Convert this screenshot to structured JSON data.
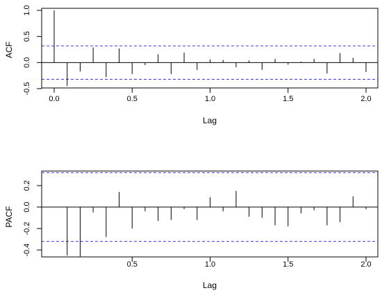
{
  "chart_data": [
    {
      "type": "bar",
      "subtype": "acf-correlogram",
      "title": "",
      "xlabel": "Lag",
      "ylabel": "ACF",
      "xlim": [
        0.0,
        2.0
      ],
      "ylim": [
        -0.5,
        1.0
      ],
      "xticks": [
        "0.0",
        "0.5",
        "1.0",
        "1.5",
        "2.0"
      ],
      "yticks": [
        "-0.5",
        "0.0",
        "0.5",
        "1.0"
      ],
      "conf_band": 0.32,
      "band_color": "#3b3be0",
      "line_color": "#000000",
      "x": [
        0.0,
        0.0833,
        0.1667,
        0.25,
        0.3333,
        0.4167,
        0.5,
        0.5833,
        0.6667,
        0.75,
        0.8333,
        0.9167,
        1.0,
        1.0833,
        1.1667,
        1.25,
        1.3333,
        1.4167,
        1.5,
        1.5833,
        1.6667,
        1.75,
        1.8333,
        1.9167,
        2.0
      ],
      "values": [
        1.0,
        -0.45,
        -0.17,
        0.29,
        -0.28,
        0.27,
        -0.22,
        -0.05,
        0.16,
        -0.22,
        0.19,
        -0.14,
        0.06,
        0.05,
        -0.09,
        0.04,
        -0.14,
        0.07,
        -0.04,
        0.02,
        0.07,
        -0.21,
        0.18,
        0.09,
        -0.18
      ]
    },
    {
      "type": "bar",
      "subtype": "pacf-correlogram",
      "title": "",
      "xlabel": "Lag",
      "ylabel": "PACF",
      "xlim": [
        0.0833,
        2.0
      ],
      "ylim": [
        -0.47,
        0.34
      ],
      "xticks": [
        "0.5",
        "1.0",
        "1.5",
        "2.0"
      ],
      "yticks": [
        "-0.4",
        "-0.2",
        "0.0",
        "0.2"
      ],
      "conf_band": 0.32,
      "band_color": "#3b3be0",
      "line_color": "#000000",
      "x": [
        0.0833,
        0.1667,
        0.25,
        0.3333,
        0.4167,
        0.5,
        0.5833,
        0.6667,
        0.75,
        0.8333,
        0.9167,
        1.0,
        1.0833,
        1.1667,
        1.25,
        1.3333,
        1.4167,
        1.5,
        1.5833,
        1.6667,
        1.75,
        1.8333,
        1.9167,
        2.0
      ],
      "values": [
        -0.45,
        -0.46,
        -0.05,
        -0.28,
        0.14,
        -0.2,
        -0.04,
        -0.13,
        -0.12,
        -0.02,
        -0.12,
        0.09,
        -0.04,
        0.15,
        -0.09,
        -0.1,
        -0.17,
        -0.18,
        -0.06,
        -0.03,
        -0.17,
        -0.14,
        0.1,
        -0.02
      ]
    }
  ]
}
